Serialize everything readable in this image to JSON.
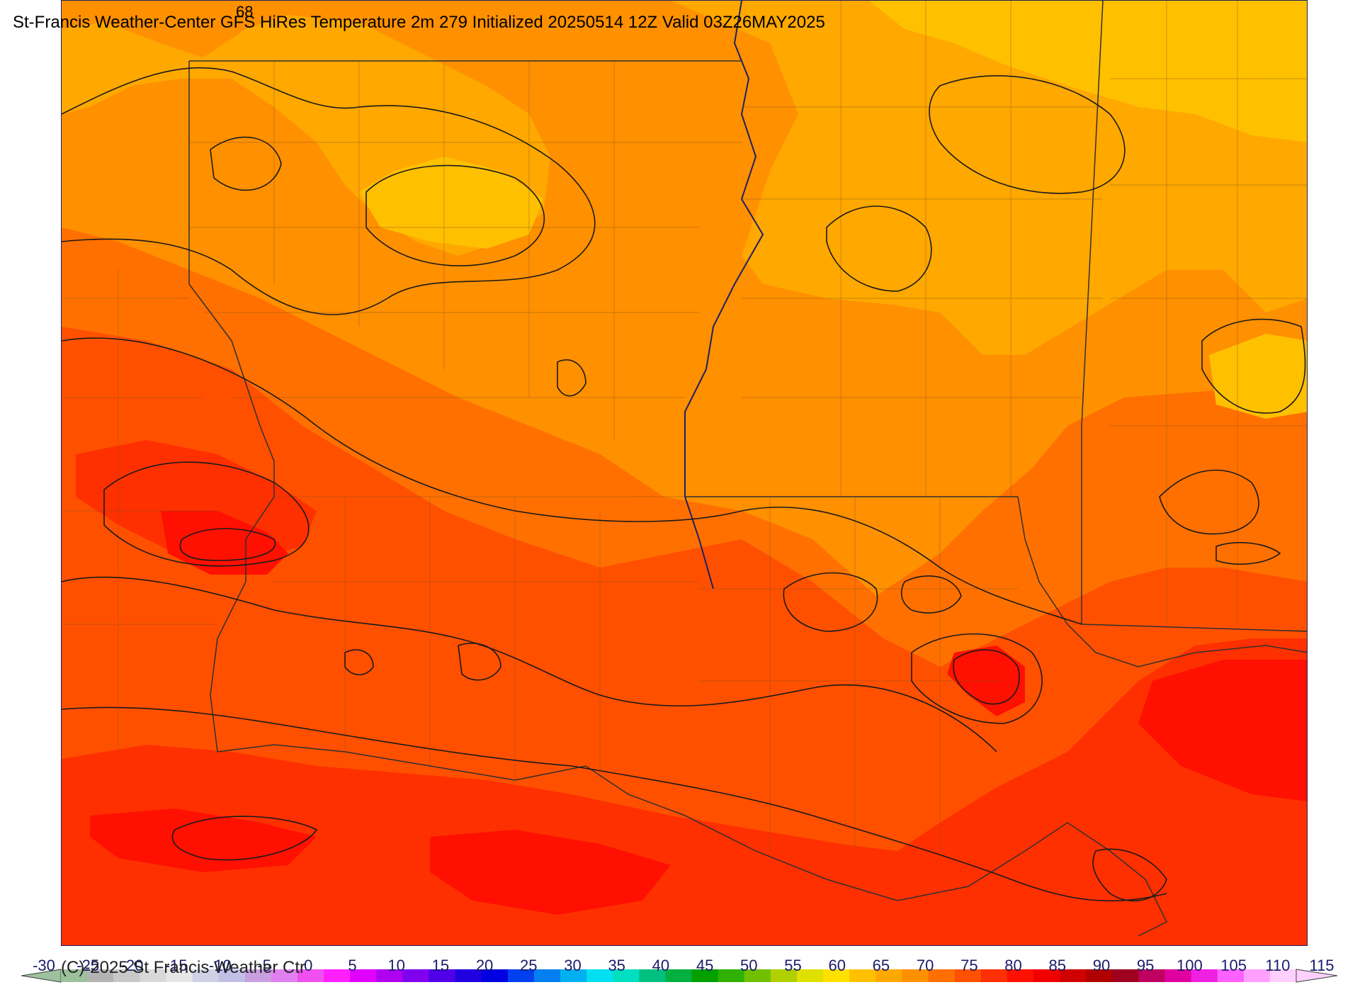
{
  "title": "St-Francis Weather-Center GFS HiRes Temperature 2m  279 Initialized 20250514 12Z Valid 03Z26MAY2025",
  "contour_label": "68",
  "copyright": "(C)-2025 St Francis Weather Ctr",
  "legend": {
    "ticks": [
      "-30",
      "-25",
      "-20",
      "-15",
      "-10",
      "-5",
      "0",
      "5",
      "10",
      "15",
      "20",
      "25",
      "30",
      "35",
      "40",
      "45",
      "50",
      "55",
      "60",
      "65",
      "70",
      "75",
      "80",
      "85",
      "90",
      "95",
      "100",
      "105",
      "110",
      "115"
    ],
    "min": -30,
    "max": 115,
    "colors": [
      "#9dc19d",
      "#b3b3b3",
      "#c8c8c8",
      "#d8d8d8",
      "#e6e6e6",
      "#d0d0e6",
      "#c0c0e6",
      "#c8a0e0",
      "#e080f0",
      "#f050f0",
      "#ff20ff",
      "#e000ff",
      "#b000f0",
      "#8000f0",
      "#5000e8",
      "#2000e0",
      "#0000e0",
      "#0040f0",
      "#0080f0",
      "#00b0f0",
      "#00e0f0",
      "#00e0c0",
      "#00c080",
      "#00b040",
      "#00a000",
      "#30b000",
      "#70c000",
      "#b0d000",
      "#e0e000",
      "#ffe000",
      "#ffc000",
      "#ffa800",
      "#ff9000",
      "#ff7000",
      "#ff5000",
      "#ff3000",
      "#ff1000",
      "#f00000",
      "#d00000",
      "#b00000",
      "#a00020",
      "#c00060",
      "#e000a0",
      "#f020e0",
      "#ff60ff",
      "#ffa0ff",
      "#ffd0ff"
    ]
  },
  "colors": {
    "t60": "#ffc000",
    "t65": "#ffa800",
    "t70": "#ff9000",
    "t75": "#ff7000",
    "t80": "#ff5000",
    "t85": "#ff3000",
    "t90": "#ff1000",
    "t95": "#f00000",
    "contour": "#1a1a1a",
    "border": "#303030",
    "county": "#7a5020",
    "frame": "#202060"
  }
}
